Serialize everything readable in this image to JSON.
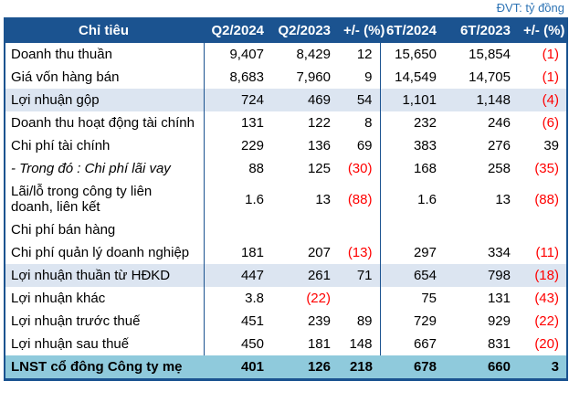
{
  "meta": {
    "unit_label": "ĐVT: tỷ đồng"
  },
  "colors": {
    "header_bg": "#1B5390",
    "highlight_row_bg": "#DCE5F1",
    "total_row_bg": "#8FCADC",
    "border": "#1B5390",
    "negative_value": "#FF0000",
    "unit_label_text": "#2E74B5"
  },
  "table": {
    "columns": [
      "Chỉ tiêu",
      "Q2/2024",
      "Q2/2023",
      "+/- (%)",
      "6T/2024",
      "6T/2023",
      "+/- (%)"
    ],
    "rows": [
      {
        "label": "Doanh thu thuần",
        "style": "normal",
        "values": [
          "9,407",
          "8,429",
          "12",
          "15,650",
          "15,854",
          "(1)"
        ]
      },
      {
        "label": "Giá vốn hàng bán",
        "style": "normal",
        "values": [
          "8,683",
          "7,960",
          "9",
          "14,549",
          "14,705",
          "(1)"
        ]
      },
      {
        "label": "Lợi nhuận gộp",
        "style": "highlight",
        "values": [
          "724",
          "469",
          "54",
          "1,101",
          "1,148",
          "(4)"
        ]
      },
      {
        "label": "Doanh thu hoạt động tài chính",
        "style": "normal",
        "values": [
          "131",
          "122",
          "8",
          "232",
          "246",
          "(6)"
        ]
      },
      {
        "label": "Chi phí tài chính",
        "style": "normal",
        "values": [
          "229",
          "136",
          "69",
          "383",
          "276",
          "39"
        ]
      },
      {
        "label": "- Trong đó : Chi phí lãi vay",
        "style": "italic",
        "values": [
          "88",
          "125",
          "(30)",
          "168",
          "258",
          "(35)"
        ]
      },
      {
        "label": "Lãi/lỗ trong công ty liên doanh, liên kết",
        "style": "normal",
        "values": [
          "1.6",
          "13",
          "(88)",
          "1.6",
          "13",
          "(88)"
        ]
      },
      {
        "label": "Chi phí bán hàng",
        "style": "normal",
        "values": [
          "",
          "",
          "",
          "",
          "",
          ""
        ]
      },
      {
        "label": "Chi phí quản lý doanh nghiệp",
        "style": "normal",
        "values": [
          "181",
          "207",
          "(13)",
          "297",
          "334",
          "(11)"
        ]
      },
      {
        "label": "Lợi nhuận thuần từ HĐKD",
        "style": "highlight",
        "values": [
          "447",
          "261",
          "71",
          "654",
          "798",
          "(18)"
        ]
      },
      {
        "label": "Lợi nhuận khác",
        "style": "normal",
        "values": [
          "3.8",
          "(22)",
          "",
          "75",
          "131",
          "(43)"
        ]
      },
      {
        "label": "Lợi nhuận trước thuế",
        "style": "normal",
        "values": [
          "451",
          "239",
          "89",
          "729",
          "929",
          "(22)"
        ]
      },
      {
        "label": "Lợi nhuận sau thuế",
        "style": "normal",
        "values": [
          "450",
          "181",
          "148",
          "667",
          "831",
          "(20)"
        ]
      },
      {
        "label": "LNST cổ đông Công ty mẹ",
        "style": "total",
        "values": [
          "401",
          "126",
          "218",
          "678",
          "660",
          "3"
        ]
      }
    ]
  }
}
